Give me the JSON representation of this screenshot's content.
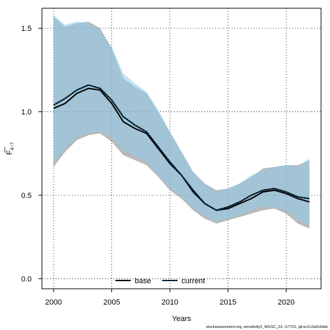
{
  "chart_data": {
    "type": "area",
    "xlabel": "Years",
    "ylabel_main": "F",
    "ylabel_sub": "4−7",
    "xlim": [
      1999,
      2023
    ],
    "ylim": [
      -0.06,
      1.62
    ],
    "xticks": [
      2000,
      2005,
      2010,
      2015,
      2020
    ],
    "yticks": [
      0.0,
      0.5,
      1.0,
      1.5
    ],
    "ytick_labels": [
      "0.0",
      "0.5",
      "1.0",
      "1.5"
    ],
    "grid": true,
    "legend_position": "bottom-center",
    "x": [
      2000,
      2001,
      2002,
      2003,
      2004,
      2005,
      2006,
      2007,
      2008,
      2009,
      2010,
      2011,
      2012,
      2013,
      2014,
      2015,
      2016,
      2017,
      2018,
      2019,
      2020,
      2021,
      2022
    ],
    "series": [
      {
        "name": "base",
        "color": "#000000",
        "band_color": "#808080",
        "median": [
          1.02,
          1.05,
          1.11,
          1.14,
          1.13,
          1.05,
          0.94,
          0.9,
          0.87,
          0.78,
          0.69,
          0.62,
          0.52,
          0.45,
          0.41,
          0.42,
          0.45,
          0.48,
          0.52,
          0.53,
          0.51,
          0.48,
          0.46
        ],
        "lower": [
          0.67,
          0.76,
          0.83,
          0.86,
          0.87,
          0.82,
          0.74,
          0.71,
          0.68,
          0.61,
          0.53,
          0.48,
          0.41,
          0.36,
          0.33,
          0.35,
          0.37,
          0.39,
          0.41,
          0.42,
          0.39,
          0.33,
          0.3
        ],
        "upper": [
          1.57,
          1.51,
          1.53,
          1.54,
          1.5,
          1.38,
          1.2,
          1.15,
          1.11,
          1.0,
          0.88,
          0.76,
          0.64,
          0.57,
          0.53,
          0.54,
          0.57,
          0.61,
          0.66,
          0.67,
          0.68,
          0.68,
          0.71
        ]
      },
      {
        "name": "current",
        "color": "#0a3d62",
        "band_color": "#8fcdee",
        "median": [
          1.04,
          1.08,
          1.13,
          1.16,
          1.14,
          1.07,
          0.97,
          0.92,
          0.88,
          0.79,
          0.7,
          0.62,
          0.53,
          0.45,
          0.41,
          0.43,
          0.46,
          0.5,
          0.53,
          0.54,
          0.52,
          0.49,
          0.48
        ],
        "lower": [
          0.69,
          0.78,
          0.85,
          0.87,
          0.88,
          0.84,
          0.77,
          0.73,
          0.7,
          0.62,
          0.54,
          0.49,
          0.42,
          0.37,
          0.34,
          0.36,
          0.38,
          0.41,
          0.43,
          0.43,
          0.41,
          0.35,
          0.32
        ],
        "upper": [
          1.58,
          1.52,
          1.54,
          1.53,
          1.49,
          1.39,
          1.23,
          1.17,
          1.12,
          1.01,
          0.88,
          0.76,
          0.64,
          0.57,
          0.52,
          0.54,
          0.57,
          0.62,
          0.65,
          0.67,
          0.68,
          0.67,
          0.72
        ]
      }
    ]
  },
  "footnote": "stockassessment.org, sensitivity2_WGSC_23, r17721, git:ec2c2a0c6dde"
}
